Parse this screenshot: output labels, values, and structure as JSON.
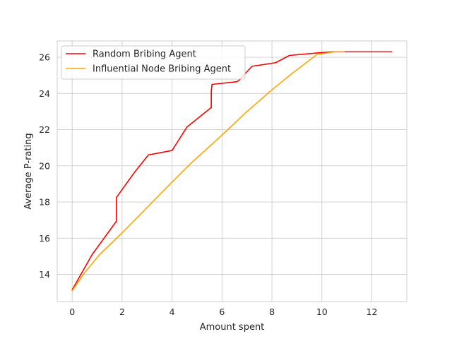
{
  "chart_data": {
    "type": "line",
    "title": "",
    "xlabel": "Amount spent",
    "ylabel": "Average P-rating",
    "xlim": [
      -0.6,
      13.4
    ],
    "ylim": [
      12.5,
      26.9
    ],
    "xticks": [
      0,
      2,
      4,
      6,
      8,
      10,
      12
    ],
    "yticks": [
      14,
      16,
      18,
      20,
      22,
      24,
      26
    ],
    "grid": true,
    "legend_position": "top-left",
    "series": [
      {
        "name": "Random Bribing Agent",
        "color": "#ff0000",
        "x": [
          0,
          0.8,
          1.75,
          1.77,
          1.77,
          2.5,
          3.05,
          4.0,
          4.6,
          5.55,
          5.57,
          5.57,
          5.6,
          6.6,
          6.7,
          7.2,
          8.15,
          8.7,
          9.9,
          10.4,
          12.8
        ],
        "y": [
          13.15,
          15.1,
          16.9,
          16.9,
          18.25,
          19.65,
          20.6,
          20.85,
          22.15,
          23.2,
          23.2,
          24.1,
          24.5,
          24.65,
          24.75,
          25.5,
          25.7,
          26.1,
          26.25,
          26.3,
          26.3
        ]
      },
      {
        "name": "Influential Node Bribing Agent",
        "color": "#ffa500",
        "x": [
          0,
          0.5,
          1.1,
          2.0,
          3.0,
          4.0,
          4.8,
          6.0,
          7.0,
          8.0,
          8.8,
          9.8,
          10.5,
          10.9
        ],
        "y": [
          13.1,
          14.1,
          15.1,
          16.3,
          17.7,
          19.1,
          20.2,
          21.7,
          23.0,
          24.2,
          25.1,
          26.15,
          26.3,
          26.3
        ]
      }
    ]
  }
}
